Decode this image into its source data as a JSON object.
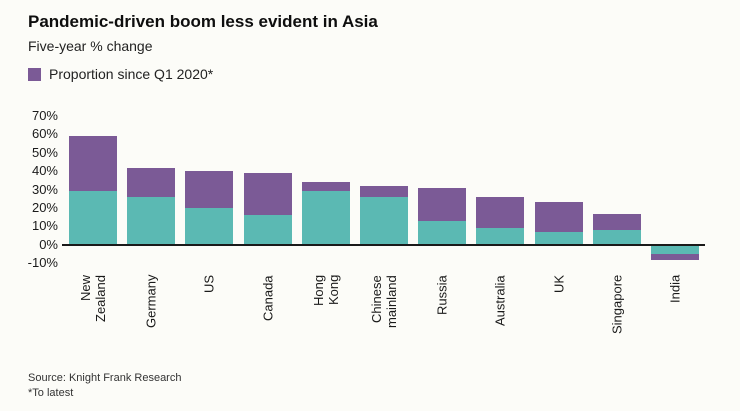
{
  "header": {
    "title": "Pandemic-driven boom less evident in Asia",
    "subtitle": "Five-year % change"
  },
  "legend": {
    "label": "Proportion since Q1 2020*",
    "color": "#7b5a96"
  },
  "chart_data": {
    "type": "bar",
    "stacked": true,
    "title": "Pandemic-driven boom less evident in Asia",
    "subtitle": "Five-year % change",
    "categories": [
      "New\nZealand",
      "Germany",
      "US",
      "Canada",
      "Hong\nKong",
      "Chinese\nmainland",
      "Russia",
      "Australia",
      "UK",
      "Singapore",
      "India"
    ],
    "series": [
      {
        "label": "",
        "color": "#5bb9b3",
        "values": [
          29,
          26,
          20,
          16,
          29,
          26,
          13,
          9,
          7,
          8,
          -5
        ]
      },
      {
        "label": "Proportion since Q1 2020*",
        "color": "#7b5a96",
        "values": [
          30,
          16,
          20,
          23,
          5,
          6,
          18,
          17,
          16,
          9,
          -3
        ]
      }
    ],
    "yticks": [
      70,
      60,
      50,
      40,
      30,
      20,
      10,
      0,
      -10
    ],
    "ytick_suffix": "%",
    "ylim": [
      -10,
      70
    ],
    "grid": false,
    "legend_position": "top-left"
  },
  "footer": {
    "source": "Source: Knight Frank Research",
    "note": "*To latest"
  }
}
